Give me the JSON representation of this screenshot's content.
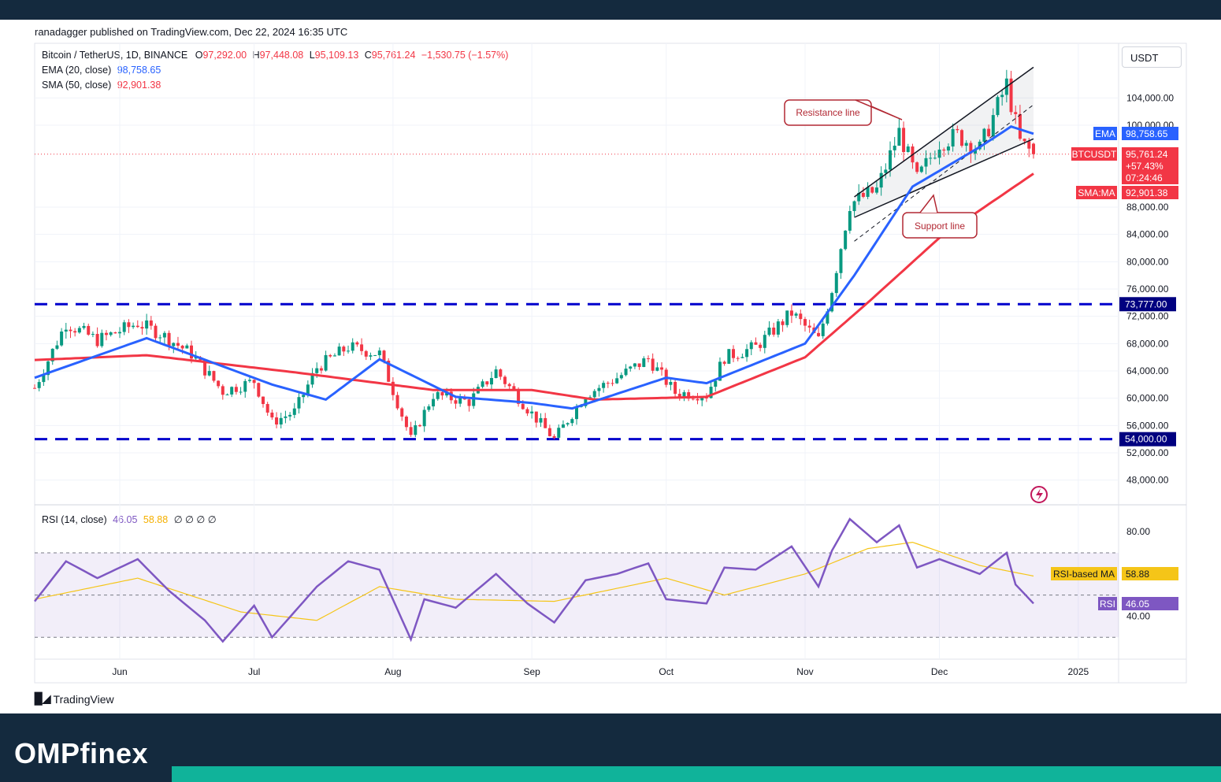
{
  "header": {
    "publisher": "ranadagger published on TradingView.com, Dec 22, 2024 16:35 UTC"
  },
  "legend": {
    "symbol": "Bitcoin / TetherUS, 1D, BINANCE",
    "o_label": "O",
    "o_value": "97,292.00",
    "h_label": "H",
    "h_value": "97,448.08",
    "l_label": "L",
    "l_value": "95,109.13",
    "c_label": "C",
    "c_value": "95,761.24",
    "change": "−1,530.75 (−1.57%)",
    "ema_label": "EMA (20, close)",
    "ema_value": "98,758.65",
    "sma_label": "SMA (50, close)",
    "sma_value": "92,901.38",
    "rsi_label": "RSI (14, close)",
    "rsi_value": "46.05",
    "rsi_ma_value": "58.88",
    "rsi_extra": "∅ ∅ ∅ ∅"
  },
  "currency_button": "USDT",
  "tradingview_label": "TradingView",
  "brand": "OMPfinex",
  "colors": {
    "up": "#089981",
    "down": "#f23645",
    "ema": "#2962ff",
    "sma": "#f23645",
    "rsi": "#7e57c2",
    "rsi_ma": "#f5c518",
    "levels": "#0000cc"
  },
  "chart_data": {
    "type": "candlestick",
    "title": "Bitcoin / TetherUS, 1D, BINANCE",
    "y_axis": {
      "ticks": [
        48000,
        52000,
        56000,
        60000,
        64000,
        68000,
        72000,
        76000,
        80000,
        84000,
        88000,
        100000,
        104000
      ],
      "tick_labels": [
        "48,000.00",
        "52,000.00",
        "56,000.00",
        "60,000.00",
        "64,000.00",
        "68,000.00",
        "72,000.00",
        "76,000.00",
        "80,000.00",
        "84,000.00",
        "88,000.00",
        "100,000.00",
        "104,000.00"
      ],
      "range": [
        45000,
        111000
      ]
    },
    "x_axis": {
      "labels": [
        "Jun",
        "Jul",
        "Aug",
        "Sep",
        "Oct",
        "Nov",
        "Dec",
        "2025"
      ],
      "dates": [
        "2024-06-01",
        "2024-07-01",
        "2024-08-01",
        "2024-09-01",
        "2024-10-01",
        "2024-11-01",
        "2024-12-01",
        "2025-01-01"
      ]
    },
    "price_markers": [
      {
        "label": "EMA",
        "value": "98,758.65",
        "color": "#2962ff"
      },
      {
        "label": "BTCUSDT",
        "value": "95,761.24",
        "extra1": "+57.43%",
        "extra2": "07:24:46",
        "color": "#f23645"
      },
      {
        "label": "SMA:MA",
        "value": "92,901.38",
        "color": "#f23645"
      }
    ],
    "horizontal_levels": [
      {
        "value": 73777,
        "label": "73,777.00"
      },
      {
        "value": 54000,
        "label": "54,000.00"
      }
    ],
    "annotations": [
      {
        "text": "Resistance line"
      },
      {
        "text": "Support line"
      }
    ],
    "channel": {
      "upper": [
        [
          "2024-11-12",
          89500
        ],
        [
          "2024-12-22",
          108500
        ]
      ],
      "middle": [
        [
          "2024-11-12",
          83000
        ],
        [
          "2024-12-22",
          103000
        ]
      ],
      "lower": [
        [
          "2024-11-12",
          86500
        ],
        [
          "2024-12-22",
          98000
        ]
      ]
    },
    "ohlc_anchor_closes": [
      [
        "2024-05-13",
        61500
      ],
      [
        "2024-05-20",
        71000
      ],
      [
        "2024-05-27",
        68500
      ],
      [
        "2024-06-05",
        71000
      ],
      [
        "2024-06-10",
        69500
      ],
      [
        "2024-06-17",
        66500
      ],
      [
        "2024-06-24",
        61000
      ],
      [
        "2024-07-01",
        62500
      ],
      [
        "2024-07-05",
        56500
      ],
      [
        "2024-07-10",
        58000
      ],
      [
        "2024-07-15",
        64500
      ],
      [
        "2024-07-22",
        67500
      ],
      [
        "2024-07-29",
        66500
      ],
      [
        "2024-08-05",
        54000
      ],
      [
        "2024-08-10",
        60500
      ],
      [
        "2024-08-18",
        59500
      ],
      [
        "2024-08-24",
        64000
      ],
      [
        "2024-08-31",
        58500
      ],
      [
        "2024-09-06",
        54000
      ],
      [
        "2024-09-13",
        60500
      ],
      [
        "2024-09-20",
        63000
      ],
      [
        "2024-09-27",
        65800
      ],
      [
        "2024-10-03",
        60800
      ],
      [
        "2024-10-10",
        60500
      ],
      [
        "2024-10-14",
        66000
      ],
      [
        "2024-10-21",
        67500
      ],
      [
        "2024-10-29",
        72500
      ],
      [
        "2024-11-04",
        68500
      ],
      [
        "2024-11-07",
        76000
      ],
      [
        "2024-11-11",
        88500
      ],
      [
        "2024-11-17",
        90500
      ],
      [
        "2024-11-22",
        99000
      ],
      [
        "2024-11-26",
        92000
      ],
      [
        "2024-12-01",
        97500
      ],
      [
        "2024-12-05",
        98500
      ],
      [
        "2024-12-10",
        96500
      ],
      [
        "2024-12-16",
        106000
      ],
      [
        "2024-12-19",
        97500
      ],
      [
        "2024-12-22",
        95761
      ]
    ],
    "ema20_anchor": [
      [
        "2024-05-13",
        63000
      ],
      [
        "2024-06-07",
        68800
      ],
      [
        "2024-07-05",
        62000
      ],
      [
        "2024-07-17",
        59800
      ],
      [
        "2024-07-29",
        65700
      ],
      [
        "2024-08-15",
        60200
      ],
      [
        "2024-09-01",
        59300
      ],
      [
        "2024-09-10",
        58500
      ],
      [
        "2024-10-01",
        63000
      ],
      [
        "2024-10-10",
        62200
      ],
      [
        "2024-11-01",
        68000
      ],
      [
        "2024-11-12",
        78000
      ],
      [
        "2024-11-25",
        91000
      ],
      [
        "2024-12-10",
        96800
      ],
      [
        "2024-12-17",
        99800
      ],
      [
        "2024-12-22",
        98758
      ]
    ],
    "sma50_anchor": [
      [
        "2024-05-13",
        65600
      ],
      [
        "2024-06-07",
        66300
      ],
      [
        "2024-07-10",
        63800
      ],
      [
        "2024-08-10",
        61200
      ],
      [
        "2024-09-01",
        61200
      ],
      [
        "2024-09-15",
        59800
      ],
      [
        "2024-10-10",
        60200
      ],
      [
        "2024-11-01",
        66000
      ],
      [
        "2024-11-15",
        74000
      ],
      [
        "2024-12-01",
        83500
      ],
      [
        "2024-12-22",
        92901
      ]
    ],
    "rsi": {
      "label": "RSI (14, close)",
      "value": "46.05",
      "ma_label": "RSI-based MA",
      "ma_value": "58.88",
      "ticks": [
        "80.00",
        "40.00"
      ],
      "band": [
        30,
        70
      ],
      "middle": 50,
      "anchors": [
        [
          "2024-05-13",
          47
        ],
        [
          "2024-05-20",
          66
        ],
        [
          "2024-05-27",
          58
        ],
        [
          "2024-06-05",
          67
        ],
        [
          "2024-06-12",
          52
        ],
        [
          "2024-06-20",
          38
        ],
        [
          "2024-06-24",
          28
        ],
        [
          "2024-07-01",
          45
        ],
        [
          "2024-07-05",
          30
        ],
        [
          "2024-07-15",
          54
        ],
        [
          "2024-07-22",
          66
        ],
        [
          "2024-07-29",
          62
        ],
        [
          "2024-08-05",
          29
        ],
        [
          "2024-08-08",
          48
        ],
        [
          "2024-08-15",
          44
        ],
        [
          "2024-08-24",
          60
        ],
        [
          "2024-08-31",
          46
        ],
        [
          "2024-09-06",
          37
        ],
        [
          "2024-09-13",
          57
        ],
        [
          "2024-09-20",
          60
        ],
        [
          "2024-09-27",
          65
        ],
        [
          "2024-10-01",
          48
        ],
        [
          "2024-10-10",
          46
        ],
        [
          "2024-10-14",
          63
        ],
        [
          "2024-10-21",
          62
        ],
        [
          "2024-10-29",
          73
        ],
        [
          "2024-11-04",
          54
        ],
        [
          "2024-11-07",
          71
        ],
        [
          "2024-11-11",
          86
        ],
        [
          "2024-11-17",
          75
        ],
        [
          "2024-11-22",
          83
        ],
        [
          "2024-11-26",
          63
        ],
        [
          "2024-12-01",
          67
        ],
        [
          "2024-12-10",
          60
        ],
        [
          "2024-12-16",
          70
        ],
        [
          "2024-12-18",
          55
        ],
        [
          "2024-12-22",
          46
        ]
      ],
      "ma_anchors": [
        [
          "2024-05-13",
          48
        ],
        [
          "2024-06-05",
          58
        ],
        [
          "2024-06-28",
          42
        ],
        [
          "2024-07-15",
          38
        ],
        [
          "2024-07-29",
          54
        ],
        [
          "2024-08-15",
          48
        ],
        [
          "2024-09-06",
          47
        ],
        [
          "2024-10-01",
          58
        ],
        [
          "2024-10-14",
          50
        ],
        [
          "2024-11-01",
          60
        ],
        [
          "2024-11-15",
          72
        ],
        [
          "2024-11-25",
          75
        ],
        [
          "2024-12-10",
          64
        ],
        [
          "2024-12-22",
          59
        ]
      ]
    }
  }
}
